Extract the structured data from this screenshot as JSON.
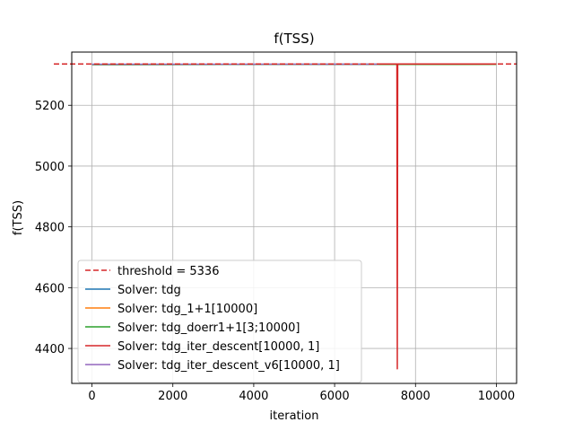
{
  "chart_data": {
    "type": "line",
    "title": "f(TSS)",
    "xlabel": "iteration",
    "ylabel": "f(TSS)",
    "xlim": [
      -500,
      10500
    ],
    "ylim": [
      4285,
      5375
    ],
    "xticks": [
      0,
      2000,
      4000,
      6000,
      8000,
      10000
    ],
    "yticks": [
      4400,
      4600,
      4800,
      5000,
      5200
    ],
    "grid": true,
    "legend_position": "lower-left",
    "threshold": {
      "name": "threshold = 5336",
      "value": 5336,
      "color": "#d62728",
      "style": "dashed"
    },
    "series": [
      {
        "name": "Solver: tdg",
        "color": "#1f77b4",
        "points": [
          [
            0,
            5334
          ],
          [
            10000,
            5335
          ]
        ]
      },
      {
        "name": "Solver: tdg_1+1[10000]",
        "color": "#ff7f0e",
        "points": [
          [
            0,
            5334
          ],
          [
            10000,
            5335
          ]
        ]
      },
      {
        "name": "Solver: tdg_doerr1+1[3;10000]",
        "color": "#2ca02c",
        "points": [
          [
            0,
            5334
          ],
          [
            10000,
            5335
          ]
        ]
      },
      {
        "name": "Solver: tdg_iter_descent[10000, 1]",
        "color": "#d62728",
        "points": [
          [
            7100,
            5336
          ],
          [
            7540,
            5336
          ],
          [
            7550,
            4333
          ],
          [
            7560,
            5336
          ],
          [
            10000,
            5336
          ]
        ]
      },
      {
        "name": "Solver: tdg_iter_descent_v6[10000, 1]",
        "color": "#9467bd",
        "points": [
          [
            0,
            5335
          ],
          [
            7100,
            5335
          ]
        ]
      }
    ]
  }
}
